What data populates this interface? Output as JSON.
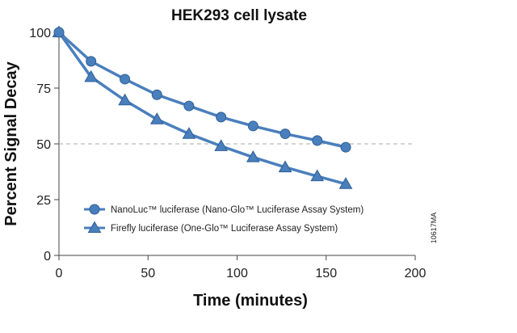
{
  "chart_data": {
    "type": "line",
    "title": "HEK293 cell lysate",
    "xlabel": "Time (minutes)",
    "ylabel": "Percent Signal Decay",
    "xlim": [
      0,
      200
    ],
    "ylim": [
      0,
      100
    ],
    "x_ticks": [
      0,
      50,
      100,
      150,
      200
    ],
    "y_ticks": [
      0,
      25,
      50,
      75,
      100
    ],
    "x_tick_labels": [
      "0",
      "50",
      "100",
      "150",
      "200"
    ],
    "y_tick_labels": [
      "0",
      "25",
      "50",
      "75",
      "100"
    ],
    "reference_line": {
      "y": 50,
      "style": "dashed",
      "color": "#aaaaaa"
    },
    "grid": false,
    "legend_position": "lower-left",
    "series": [
      {
        "name": "NanoLuc™ luciferase (Nano-Glo™ Luciferase Assay System)",
        "marker": "circle",
        "color": "#4a7fbd",
        "x": [
          0,
          18,
          37,
          55,
          73,
          91,
          109,
          127,
          145,
          161
        ],
        "y": [
          100,
          87,
          79,
          72,
          67,
          62,
          58,
          54.5,
          51.5,
          48.5
        ]
      },
      {
        "name": "Firefly luciferase (One-Glo™ Luciferase Assay System)",
        "marker": "triangle",
        "color": "#4a7fbd",
        "x": [
          0,
          18,
          37,
          55,
          73,
          91,
          109,
          127,
          145,
          161
        ],
        "y": [
          100,
          80,
          69.5,
          61,
          54.5,
          49,
          44,
          39.5,
          35.5,
          32
        ]
      }
    ],
    "side_label": "10617MA"
  }
}
